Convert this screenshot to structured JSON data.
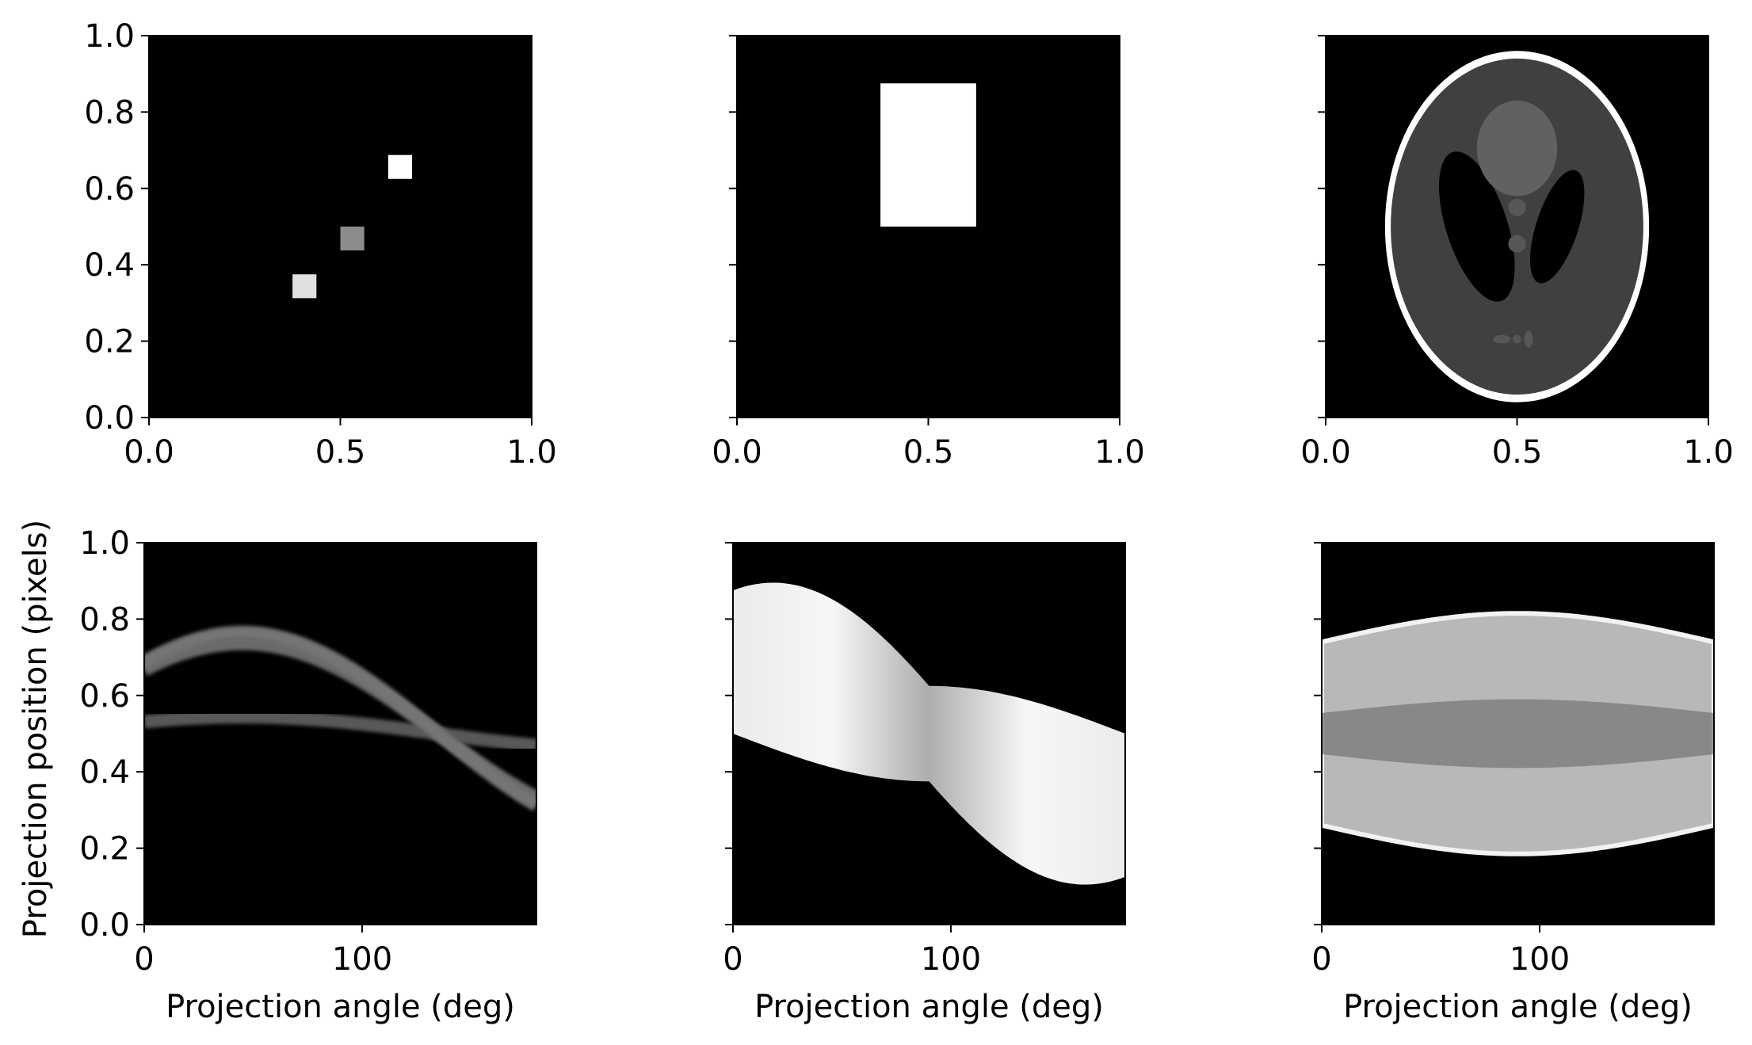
{
  "figure": {
    "background": "#ffffff",
    "colormap": "gray",
    "shared_ylabel": "Projection position (pixels)"
  },
  "chart_data": [
    {
      "id": "image-points",
      "row": 0,
      "col": 0,
      "type": "heatmap",
      "title": "",
      "xlabel": "",
      "ylabel": "",
      "xlim": [
        0.0,
        1.0
      ],
      "ylim": [
        0.0,
        1.0
      ],
      "xticks": [
        "0.0",
        "0.5",
        "1.0"
      ],
      "yticks": [
        "0.0",
        "0.2",
        "0.4",
        "0.6",
        "0.8",
        "1.0"
      ],
      "show_xtick_labels": true,
      "show_ytick_labels": true,
      "background_value": 0,
      "squares": [
        {
          "x": [
            0.375,
            0.4375
          ],
          "y": [
            0.3125,
            0.375
          ],
          "value": 0.88
        },
        {
          "x": [
            0.5,
            0.5625
          ],
          "y": [
            0.4375,
            0.5
          ],
          "value": 0.55
        },
        {
          "x": [
            0.625,
            0.6875
          ],
          "y": [
            0.625,
            0.6875
          ],
          "value": 1.0
        }
      ]
    },
    {
      "id": "image-rectangle",
      "row": 0,
      "col": 1,
      "type": "heatmap",
      "title": "",
      "xlabel": "",
      "ylabel": "",
      "xlim": [
        0.0,
        1.0
      ],
      "ylim": [
        0.0,
        1.0
      ],
      "xticks": [
        "0.0",
        "0.5",
        "1.0"
      ],
      "yticks": [
        "0.0",
        "0.2",
        "0.4",
        "0.6",
        "0.8",
        "1.0"
      ],
      "show_xtick_labels": true,
      "show_ytick_labels": false,
      "background_value": 0,
      "rectangles": [
        {
          "x": [
            0.375,
            0.625
          ],
          "y": [
            0.5,
            0.875
          ],
          "value": 1.0
        }
      ]
    },
    {
      "id": "image-phantom",
      "row": 0,
      "col": 2,
      "type": "heatmap",
      "title": "",
      "xlabel": "",
      "ylabel": "",
      "xlim": [
        0.0,
        1.0
      ],
      "ylim": [
        0.0,
        1.0
      ],
      "xticks": [
        "0.0",
        "0.5",
        "1.0"
      ],
      "yticks": [
        "0.0",
        "0.2",
        "0.4",
        "0.6",
        "0.8",
        "1.0"
      ],
      "show_xtick_labels": true,
      "show_ytick_labels": false,
      "background_value": 0,
      "ellipses": [
        {
          "cx": 0.5,
          "cy": 0.5,
          "rx": 0.345,
          "ry": 0.46,
          "angle": 0,
          "value": 1.0
        },
        {
          "cx": 0.5,
          "cy": 0.5,
          "rx": 0.33,
          "ry": 0.44,
          "angle": 0,
          "value": 0.25
        },
        {
          "cx": 0.395,
          "cy": 0.5,
          "rx": 0.08,
          "ry": 0.205,
          "angle": -18,
          "value": 0.0
        },
        {
          "cx": 0.605,
          "cy": 0.5,
          "rx": 0.055,
          "ry": 0.155,
          "angle": 18,
          "value": 0.0
        },
        {
          "cx": 0.5,
          "cy": 0.705,
          "rx": 0.105,
          "ry": 0.125,
          "angle": 0,
          "value": 0.38
        },
        {
          "cx": 0.5,
          "cy": 0.55,
          "rx": 0.023,
          "ry": 0.023,
          "angle": 0,
          "value": 0.34
        },
        {
          "cx": 0.5,
          "cy": 0.455,
          "rx": 0.023,
          "ry": 0.023,
          "angle": 0,
          "value": 0.34
        },
        {
          "cx": 0.46,
          "cy": 0.205,
          "rx": 0.023,
          "ry": 0.011,
          "angle": 0,
          "value": 0.34
        },
        {
          "cx": 0.5,
          "cy": 0.205,
          "rx": 0.011,
          "ry": 0.011,
          "angle": 0,
          "value": 0.34
        },
        {
          "cx": 0.53,
          "cy": 0.205,
          "rx": 0.011,
          "ry": 0.023,
          "angle": 0,
          "value": 0.34
        }
      ]
    },
    {
      "id": "sinogram-points",
      "row": 1,
      "col": 0,
      "type": "heatmap",
      "title": "",
      "xlabel": "Projection angle (deg)",
      "ylabel": "Projection position (pixels)",
      "xlim": [
        0,
        180
      ],
      "ylim": [
        0.0,
        1.0
      ],
      "xticks": [
        "0",
        "100"
      ],
      "xtick_values": [
        0,
        100
      ],
      "yticks": [
        "0.0",
        "0.2",
        "0.4",
        "0.6",
        "0.8",
        "1.0"
      ],
      "show_xtick_labels": true,
      "show_ytick_labels": true,
      "background_value": 0,
      "sinusoids": [
        {
          "r": 0.236,
          "phase_deg": 45,
          "value": 0.42,
          "width": 0.035
        },
        {
          "r": 0.044,
          "phase_deg": 45,
          "value": 0.35,
          "width": 0.035
        },
        {
          "r": 0.265,
          "phase_deg": 45,
          "value": 0.46,
          "width": 0.035
        }
      ]
    },
    {
      "id": "sinogram-rectangle",
      "row": 1,
      "col": 1,
      "type": "heatmap",
      "title": "",
      "xlabel": "Projection angle (deg)",
      "ylabel": "",
      "xlim": [
        0,
        180
      ],
      "ylim": [
        0.0,
        1.0
      ],
      "xticks": [
        "0",
        "100"
      ],
      "xtick_values": [
        0,
        100
      ],
      "yticks": [
        "0.0",
        "0.2",
        "0.4",
        "0.6",
        "0.8",
        "1.0"
      ],
      "show_xtick_labels": true,
      "show_ytick_labels": false,
      "background_value": 0,
      "projected_rect": {
        "x": [
          0.375,
          0.625
        ],
        "y": [
          0.5,
          0.875
        ],
        "peak": 0.95
      }
    },
    {
      "id": "sinogram-phantom",
      "row": 1,
      "col": 2,
      "type": "heatmap",
      "title": "",
      "xlabel": "Projection angle (deg)",
      "ylabel": "",
      "xlim": [
        0,
        180
      ],
      "ylim": [
        0.0,
        1.0
      ],
      "xticks": [
        "0",
        "100"
      ],
      "xtick_values": [
        0,
        100
      ],
      "yticks": [
        "0.0",
        "0.2",
        "0.4",
        "0.6",
        "0.8",
        "1.0"
      ],
      "show_xtick_labels": true,
      "show_ytick_labels": false,
      "background_value": 0,
      "envelope": {
        "half_width_at_0": 0.24,
        "half_width_at_90": 0.315,
        "center": 0.5
      },
      "rim_value": 0.95,
      "interior_base": 0.72,
      "interior_dark_band": {
        "center": 0.5,
        "half_width": 0.09,
        "value": 0.45
      }
    }
  ]
}
